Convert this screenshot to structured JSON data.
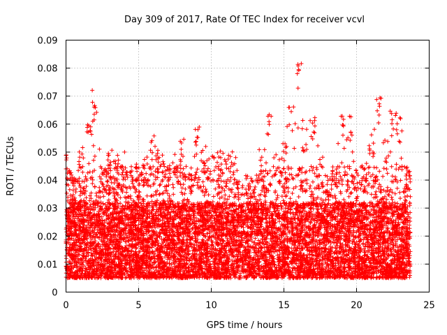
{
  "chart_data": {
    "type": "scatter",
    "title": "Day 309 of 2017, Rate Of TEC Index for receiver vcvl",
    "xlabel": "GPS time / hours",
    "ylabel": "ROTI / TECUs",
    "xlim": [
      0,
      25
    ],
    "ylim": [
      0,
      0.09
    ],
    "x_ticks": [
      "0",
      "5",
      "10",
      "15",
      "20",
      "25"
    ],
    "y_ticks": [
      "0",
      "0.01",
      "0.02",
      "0.03",
      "0.04",
      "0.05",
      "0.06",
      "0.07",
      "0.08",
      "0.09"
    ],
    "grid": true,
    "marker": "+",
    "marker_color": "#ff0000",
    "x_range_of_data": [
      0,
      23.7
    ],
    "series": [
      {
        "envelope_x": [
          0,
          0.5,
          1,
          1.5,
          2,
          2.5,
          3,
          3.5,
          4,
          4.5,
          5,
          5.5,
          6,
          6.5,
          7,
          7.5,
          8,
          8.5,
          9,
          9.5,
          10,
          10.5,
          11,
          11.5,
          12,
          12.5,
          13,
          13.5,
          14,
          14.5,
          15,
          15.5,
          16,
          16.5,
          17,
          17.5,
          18,
          18.5,
          19,
          19.5,
          20,
          20.5,
          21,
          21.5,
          22,
          22.5,
          23,
          23.5
        ],
        "envelope_max": [
          0.051,
          0.04,
          0.052,
          0.06,
          0.073,
          0.046,
          0.051,
          0.05,
          0.051,
          0.045,
          0.047,
          0.048,
          0.057,
          0.052,
          0.045,
          0.052,
          0.055,
          0.042,
          0.059,
          0.053,
          0.049,
          0.051,
          0.051,
          0.05,
          0.038,
          0.043,
          0.04,
          0.051,
          0.065,
          0.05,
          0.055,
          0.067,
          0.083,
          0.06,
          0.064,
          0.049,
          0.044,
          0.048,
          0.064,
          0.063,
          0.045,
          0.048,
          0.057,
          0.071,
          0.055,
          0.065,
          0.063,
          0.044
        ]
      }
    ]
  }
}
